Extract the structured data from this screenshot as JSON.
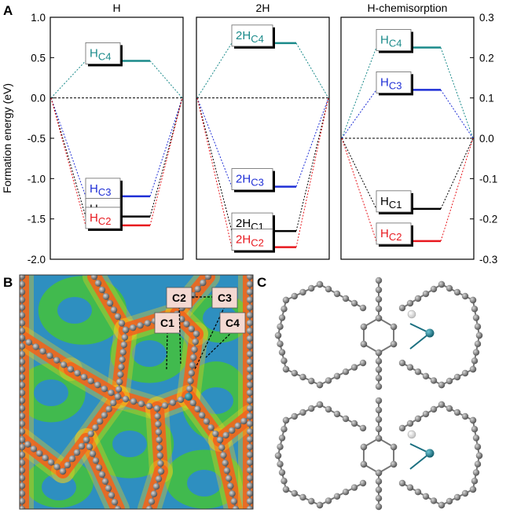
{
  "panel_letters": {
    "a": "A",
    "b": "B",
    "c": "C"
  },
  "colors": {
    "c1": "#000000",
    "c2": "#e8191f",
    "c3": "#1f2fd6",
    "c4": "#1a8a8a"
  },
  "chart_data": {
    "type": "line",
    "ylabel": "Formation energy (eV)",
    "left_axis": {
      "ylim": [
        -2.0,
        1.0
      ],
      "ticks": [
        "1.0",
        "0.5",
        "0.0",
        "-0.5",
        "-1.0",
        "-1.5",
        "-2.0"
      ]
    },
    "right_axis": {
      "ylim": [
        -0.3,
        0.3
      ],
      "ticks": [
        "0.3",
        "0.2",
        "0.1",
        "0.0",
        "-0.1",
        "-0.2",
        "-0.3"
      ]
    },
    "panels": [
      {
        "title": "H",
        "axis": "left",
        "levels": [
          {
            "label": "H",
            "sub": "C4",
            "site": "c4",
            "value": 0.46
          },
          {
            "label": "H",
            "sub": "C3",
            "site": "c3",
            "value": -1.22
          },
          {
            "label": "H",
            "sub": "C1",
            "site": "c1",
            "value": -1.47
          },
          {
            "label": "H",
            "sub": "C2",
            "site": "c2",
            "value": -1.58
          }
        ]
      },
      {
        "title": "2H",
        "axis": "left",
        "levels": [
          {
            "label": "2H",
            "sub": "C4",
            "site": "c4",
            "value": 0.68
          },
          {
            "label": "2H",
            "sub": "C3",
            "site": "c3",
            "value": -1.1
          },
          {
            "label": "2H",
            "sub": "C1",
            "site": "c1",
            "value": -1.65
          },
          {
            "label": "2H",
            "sub": "C2",
            "site": "c2",
            "value": -1.85
          }
        ]
      },
      {
        "title": "H-chemisorption",
        "axis": "right",
        "levels": [
          {
            "label": "H",
            "sub": "C4",
            "site": "c4",
            "value": 0.225
          },
          {
            "label": "H",
            "sub": "C3",
            "site": "c3",
            "value": 0.12
          },
          {
            "label": "H",
            "sub": "C1",
            "site": "c1",
            "value": -0.175
          },
          {
            "label": "H",
            "sub": "C2",
            "site": "c2",
            "value": -0.255
          }
        ]
      }
    ]
  },
  "panel_b": {
    "site_labels": [
      "C1",
      "C2",
      "C3",
      "C4"
    ]
  }
}
